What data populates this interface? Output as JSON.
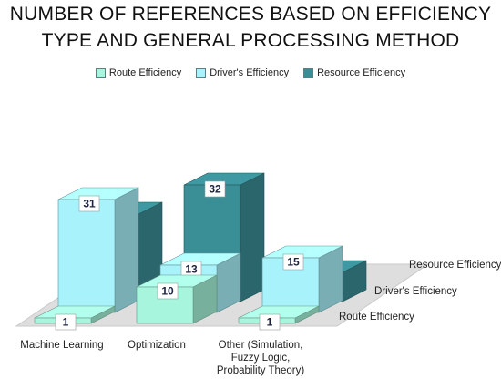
{
  "chart_data": {
    "type": "bar",
    "title_lines": [
      "NUMBER OF REFERENCES BASED ON EFFICIENCY",
      "TYPE AND GENERAL PROCESSING METHOD"
    ],
    "categories": [
      "Machine Learning",
      "Optimization",
      "Other (Simulation, Fuzzy Logic, Probability Theory)"
    ],
    "category_label_lines": [
      [
        "Machine Learning"
      ],
      [
        "Optimization"
      ],
      [
        "Other (Simulation,",
        "Fuzzy Logic,",
        "Probability Theory)"
      ]
    ],
    "series": [
      {
        "name": "Route Efficiency",
        "values": [
          1,
          10,
          1
        ]
      },
      {
        "name": "Driver's Efficiency",
        "values": [
          31,
          13,
          15
        ]
      },
      {
        "name": "Resource Efficiency",
        "values": [
          24,
          32,
          8
        ]
      }
    ],
    "depth_labels": [
      "Route Efficiency",
      "Driver's Efficiency",
      "Resource Efficiency"
    ],
    "legend_position": "top",
    "colors": {
      "route": "#a6f5dc",
      "driver": "#a8f2fb",
      "resource": "#3a8e96"
    },
    "style": "3d-bar"
  }
}
